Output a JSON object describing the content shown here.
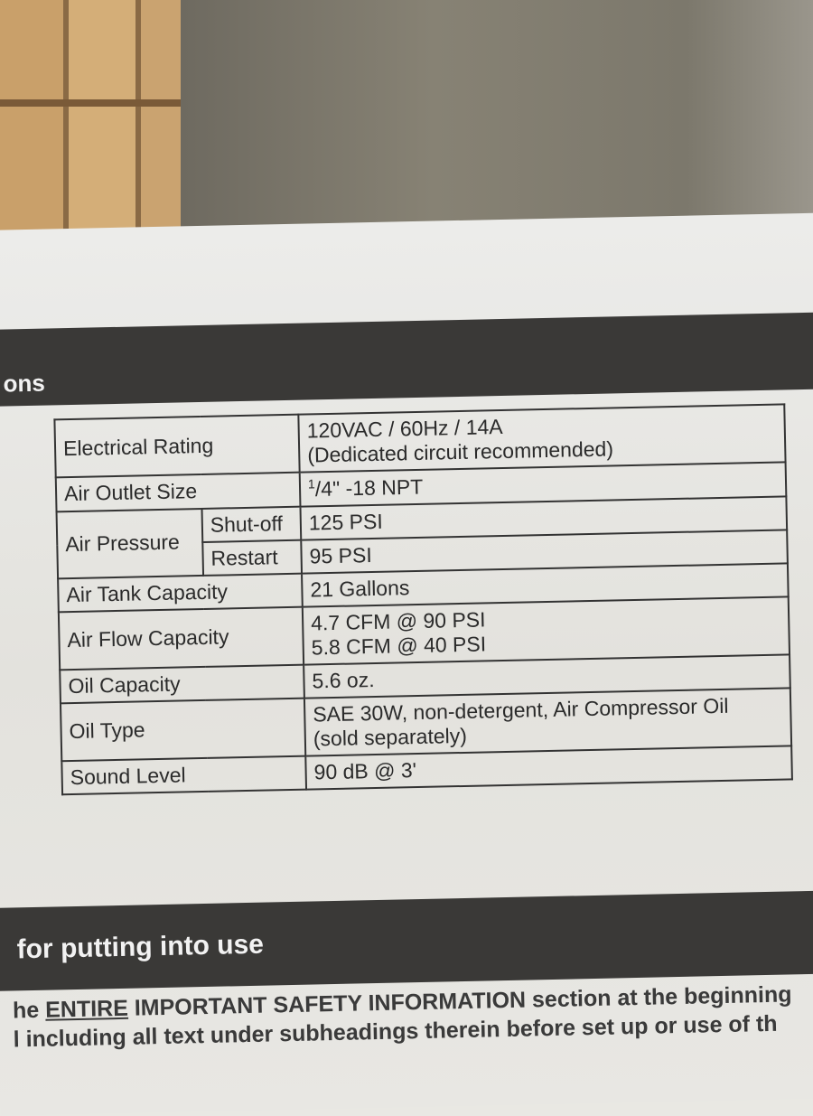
{
  "section_header_1": "ons",
  "specs": {
    "electrical_rating": {
      "label": "Electrical Rating",
      "line1": "120VAC / 60Hz / 14A",
      "line2": "(Dedicated circuit recommended)"
    },
    "air_outlet": {
      "label": "Air Outlet Size",
      "fraction_num": "1",
      "fraction_rest": "/4\" -18 NPT"
    },
    "air_pressure": {
      "label": "Air Pressure",
      "shutoff_label": "Shut-off",
      "shutoff_value": "125 PSI",
      "restart_label": "Restart",
      "restart_value": "95 PSI"
    },
    "air_tank": {
      "label": "Air Tank Capacity",
      "value": "21 Gallons"
    },
    "air_flow": {
      "label": "Air Flow Capacity",
      "line1": "4.7 CFM @ 90 PSI",
      "line2": "5.8 CFM @ 40 PSI"
    },
    "oil_capacity": {
      "label": "Oil Capacity",
      "value": "5.6 oz."
    },
    "oil_type": {
      "label": "Oil Type",
      "line1": "SAE 30W, non-detergent, Air Compressor Oil",
      "line2": "(sold separately)"
    },
    "sound_level": {
      "label": "Sound Level",
      "value": "90 dB @ 3'"
    }
  },
  "section_header_2": "for putting into use",
  "safety_text": {
    "prefix": "he ",
    "emphasis": "ENTIRE",
    "line1_rest": " IMPORTANT SAFETY INFORMATION section at the beginning",
    "line2": "l including all text under subheadings therein before set up or use of th"
  }
}
